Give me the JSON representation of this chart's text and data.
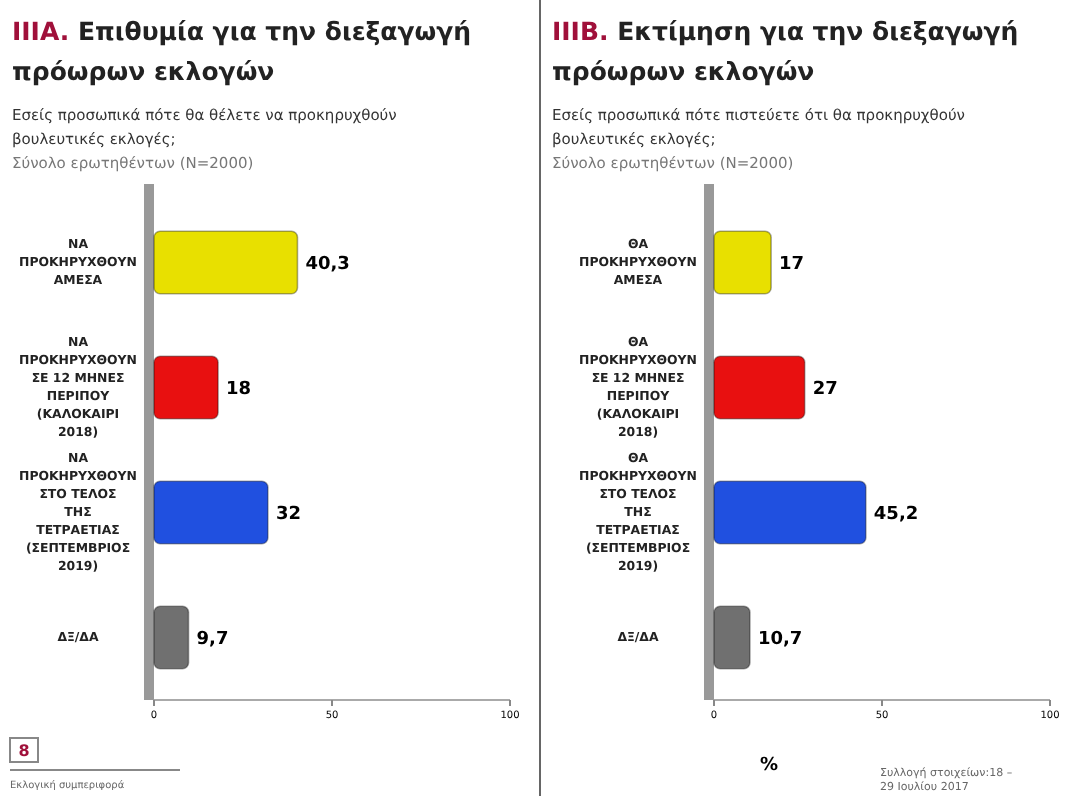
{
  "chart_data": [
    {
      "type": "bar",
      "orientation": "horizontal",
      "title": "IIIA. Επιθυμία για την διεξαγωγή πρόωρων εκλογών",
      "subtitle": "Εσείς προσωπικά πότε θα θέλετε να προκηρυχθούν βουλευτικές εκλογές;",
      "categories": [
        "ΝΑ ΠΡΟΚΗΡΥΧΘΟΥΝ ΑΜΕΣΑ",
        "ΝΑ ΠΡΟΚΗΡΥΧΘΟΥΝ ΣΕ 12 ΜΗΝΕΣ ΠΕΡΙΠΟΥ (ΚΑΛΟΚΑΙΡΙ 2018)",
        "ΝΑ ΠΡΟΚΗΡΥΧΘΟΥΝ ΣΤΟ ΤΕΛΟΣ ΤΗΣ ΤΕΤΡΑΕΤΙΑΣ (ΣΕΠΤΕΜΒΡΙΟΣ 2019)",
        "ΔΞ/ΔΑ"
      ],
      "values": [
        40.3,
        18,
        32,
        9.7
      ],
      "colors": [
        "#e8e000",
        "#e81010",
        "#2050e0",
        "#707070"
      ],
      "value_labels": [
        "40,3",
        "18",
        "32",
        "9,7"
      ],
      "xlim": [
        0,
        100
      ],
      "xticks": [
        0,
        50,
        100
      ],
      "grid": false,
      "annotations": [
        "Σύνολο ερωτηθέντων (N=2000)",
        "8",
        "Εκλογική συμπεριφορά"
      ]
    },
    {
      "type": "bar",
      "orientation": "horizontal",
      "title": "IIIB. Εκτίμηση για την διεξαγωγή πρόωρων εκλογών",
      "subtitle": "Εσείς προσωπικά πότε πιστεύετε ότι θα προκηρυχθούν βουλευτικές εκλογές;",
      "categories": [
        "ΘΑ ΠΡΟΚΗΡΥΧΘΟΥΝ ΑΜΕΣΑ",
        "ΘΑ ΠΡΟΚΗΡΥΧΘΟΥΝ ΣΕ 12 ΜΗΝΕΣ ΠΕΡΙΠΟΥ (ΚΑΛΟΚΑΙΡΙ 2018)",
        "ΘΑ ΠΡΟΚΗΡΥΧΘΟΥΝ ΣΤΟ ΤΕΛΟΣ ΤΗΣ ΤΕΤΡΑΕΤΙΑΣ (ΣΕΠΤΕΜΒΡΙΟΣ 2019)",
        "ΔΞ/ΔΑ"
      ],
      "values": [
        17,
        27,
        45.2,
        10.7
      ],
      "colors": [
        "#e8e000",
        "#e81010",
        "#2050e0",
        "#707070"
      ],
      "value_labels": [
        "17",
        "27",
        "45,2",
        "10,7"
      ],
      "xlim": [
        0,
        100
      ],
      "xticks": [
        0,
        50,
        100
      ],
      "grid": false,
      "xlabel": "%",
      "annotations": [
        "Σύνολο ερωτηθέντων (N=2000)",
        "Συλλογή στοιχείων:18 – 29 Ιουλίου 2017"
      ]
    }
  ]
}
